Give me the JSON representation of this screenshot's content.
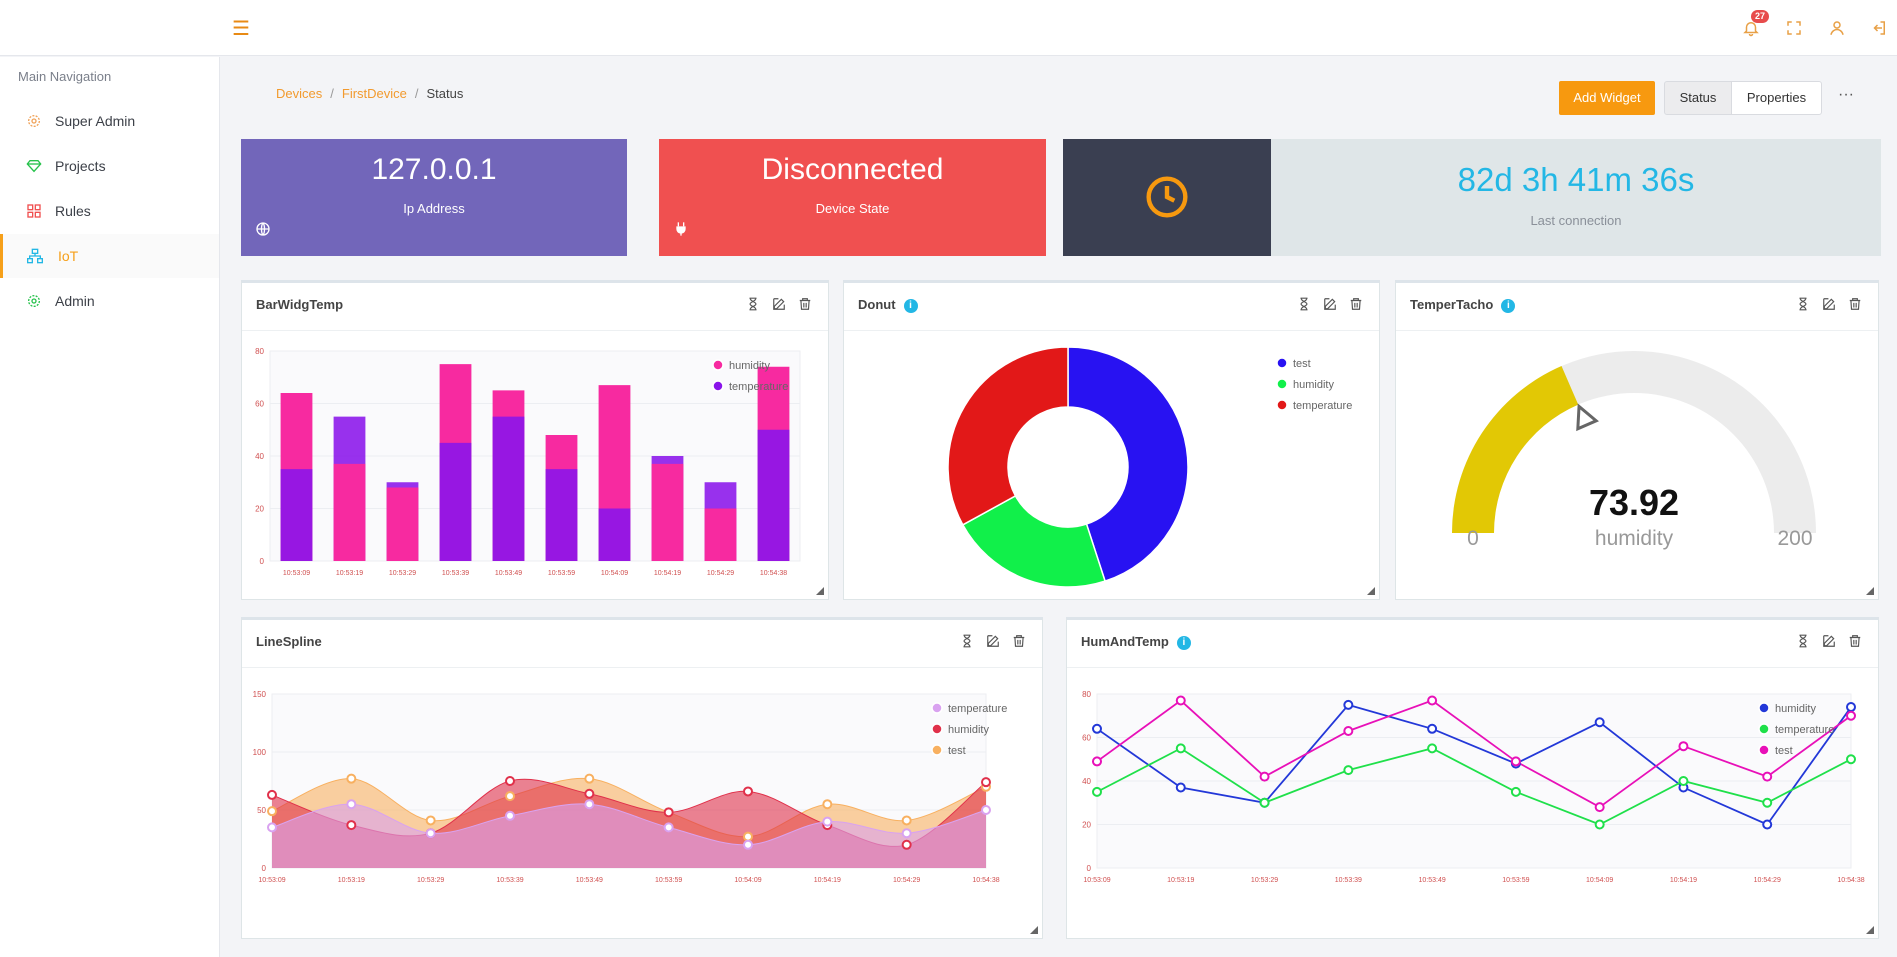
{
  "topbar": {
    "notification_count": "27"
  },
  "sidebar": {
    "heading": "Main Navigation",
    "items": [
      {
        "label": "Super Admin",
        "icon": "gear-icon",
        "color": "#f0a35a"
      },
      {
        "label": "Projects",
        "icon": "diamond-icon",
        "color": "#27c24c"
      },
      {
        "label": "Rules",
        "icon": "grid-icon",
        "color": "#f05050"
      },
      {
        "label": "IoT",
        "icon": "network-icon",
        "color": "#23b7e5"
      },
      {
        "label": "Admin",
        "icon": "gear-icon",
        "color": "#27c24c"
      }
    ]
  },
  "breadcrumb": {
    "items": [
      "Devices",
      "FirstDevice"
    ],
    "current": "Status"
  },
  "toolbar": {
    "add_widget": "Add Widget",
    "status": "Status",
    "properties": "Properties",
    "more": "···"
  },
  "cards": {
    "ip": {
      "value": "127.0.0.1",
      "label": "Ip Address",
      "color": "#7266ba"
    },
    "state": {
      "value": "Disconnected",
      "label": "Device State",
      "color": "#f05050"
    },
    "connection": {
      "value": "82d 3h 41m 36s",
      "label": "Last connection"
    }
  },
  "widgets": {
    "bar": {
      "title": "BarWidgTemp"
    },
    "donut": {
      "title": "Donut"
    },
    "gauge": {
      "title": "TemperTacho"
    },
    "spline": {
      "title": "LineSpline"
    },
    "humtemp": {
      "title": "HumAndTemp"
    }
  },
  "chart_data": [
    {
      "type": "bar",
      "title": "BarWidgTemp",
      "categories": [
        "10:53:09",
        "10:53:19",
        "10:53:29",
        "10:53:39",
        "10:53:49",
        "10:53:59",
        "10:54:09",
        "10:54:19",
        "10:54:29",
        "10:54:38"
      ],
      "ylim": [
        0,
        80
      ],
      "yticks": [
        "0",
        "20",
        "40",
        "60",
        "80"
      ],
      "series": [
        {
          "name": "humidity",
          "color": "#f72aa0",
          "values": [
            64,
            37,
            28,
            75,
            65,
            48,
            67,
            37,
            20,
            74
          ]
        },
        {
          "name": "temperature",
          "color": "#8a14ea",
          "values": [
            35,
            55,
            30,
            45,
            55,
            35,
            20,
            40,
            30,
            50
          ]
        }
      ],
      "legend": "top-right",
      "grid": true
    },
    {
      "type": "pie",
      "title": "Donut",
      "series": [
        {
          "name": "test",
          "color": "#2812f2",
          "value": 45
        },
        {
          "name": "humidity",
          "color": "#11f04a",
          "value": 22
        },
        {
          "name": "temperature",
          "color": "#e21818",
          "value": 33
        }
      ],
      "legend": "top-right"
    },
    {
      "type": "gauge",
      "title": "TemperTacho",
      "value": 73.92,
      "value_label": "73.92",
      "label": "humidity",
      "min": 0,
      "max": 200,
      "min_label": "0",
      "max_label": "200",
      "color": "#e2c805"
    },
    {
      "type": "area",
      "title": "LineSpline",
      "categories": [
        "10:53:09",
        "10:53:19",
        "10:53:29",
        "10:53:39",
        "10:53:49",
        "10:53:59",
        "10:54:09",
        "10:54:19",
        "10:54:29",
        "10:54:38"
      ],
      "ylim": [
        0,
        150
      ],
      "yticks": [
        "0",
        "50",
        "100",
        "150"
      ],
      "series": [
        {
          "name": "temperature",
          "color": "#d9a2f0",
          "values": [
            35,
            55,
            30,
            45,
            55,
            35,
            20,
            40,
            30,
            50
          ]
        },
        {
          "name": "humidity",
          "color": "#e0304a",
          "values": [
            63,
            37,
            30,
            75,
            64,
            48,
            66,
            37,
            20,
            74
          ]
        },
        {
          "name": "test",
          "color": "#f8b060",
          "values": [
            49,
            77,
            41,
            62,
            77,
            48,
            27,
            55,
            41,
            70
          ]
        }
      ],
      "legend": "top-right",
      "grid": true
    },
    {
      "type": "line",
      "title": "HumAndTemp",
      "categories": [
        "10:53:09",
        "10:53:19",
        "10:53:29",
        "10:53:39",
        "10:53:49",
        "10:53:59",
        "10:54:09",
        "10:54:19",
        "10:54:29",
        "10:54:38"
      ],
      "ylim": [
        0,
        80
      ],
      "yticks": [
        "0",
        "20",
        "40",
        "60",
        "80"
      ],
      "series": [
        {
          "name": "humidity",
          "color": "#2338d8",
          "values": [
            64,
            37,
            30,
            75,
            64,
            48,
            67,
            37,
            20,
            74
          ]
        },
        {
          "name": "temperature",
          "color": "#1fe04a",
          "values": [
            35,
            55,
            30,
            45,
            55,
            35,
            20,
            40,
            30,
            50
          ]
        },
        {
          "name": "test",
          "color": "#e810b8",
          "values": [
            49,
            77,
            42,
            63,
            77,
            49,
            28,
            56,
            42,
            70
          ]
        }
      ],
      "legend": "top-right",
      "grid": true
    }
  ]
}
